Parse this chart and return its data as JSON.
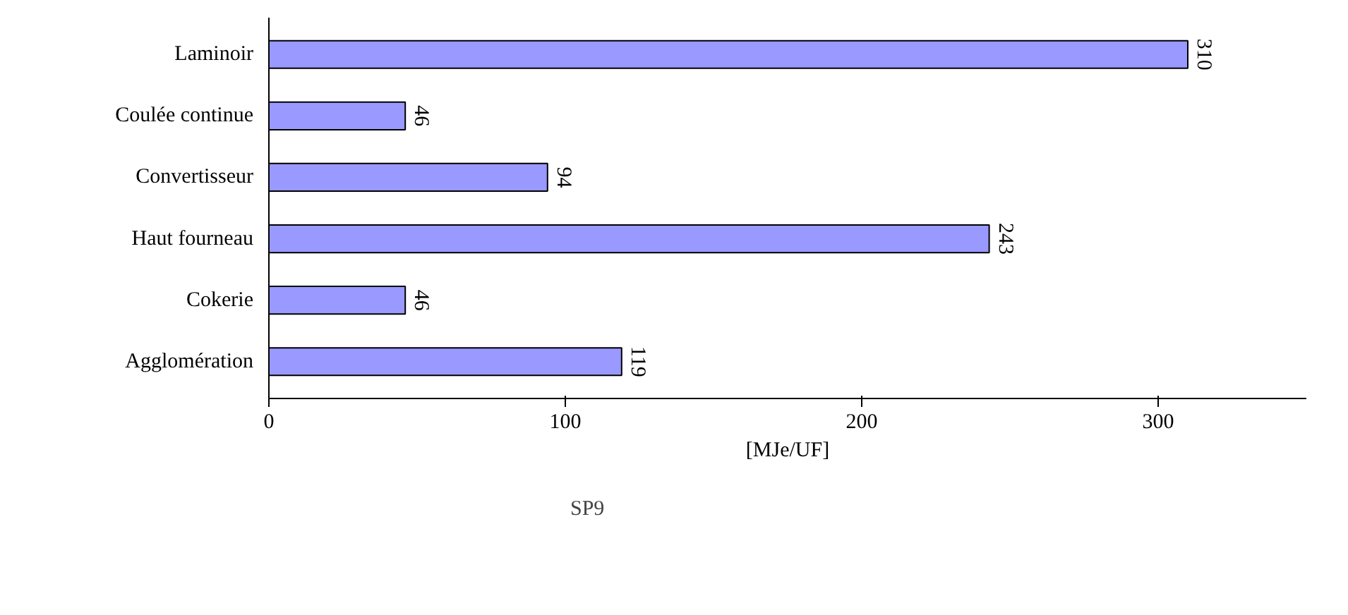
{
  "chart_data": {
    "type": "bar",
    "orientation": "horizontal",
    "categories": [
      "Laminoir",
      "Coulée continue",
      "Convertisseur",
      "Haut fourneau",
      "Cokerie",
      "Agglomération"
    ],
    "series": [
      {
        "name": "SP9",
        "color": "#9999ff",
        "values": [
          310,
          46,
          94,
          243,
          46,
          119
        ]
      }
    ],
    "xlim": [
      0,
      350
    ],
    "xticks": [
      0,
      100,
      200,
      300
    ],
    "xlabel": "[MJe/UF]",
    "data_labels": true,
    "legend": "bottom",
    "grid": false
  }
}
